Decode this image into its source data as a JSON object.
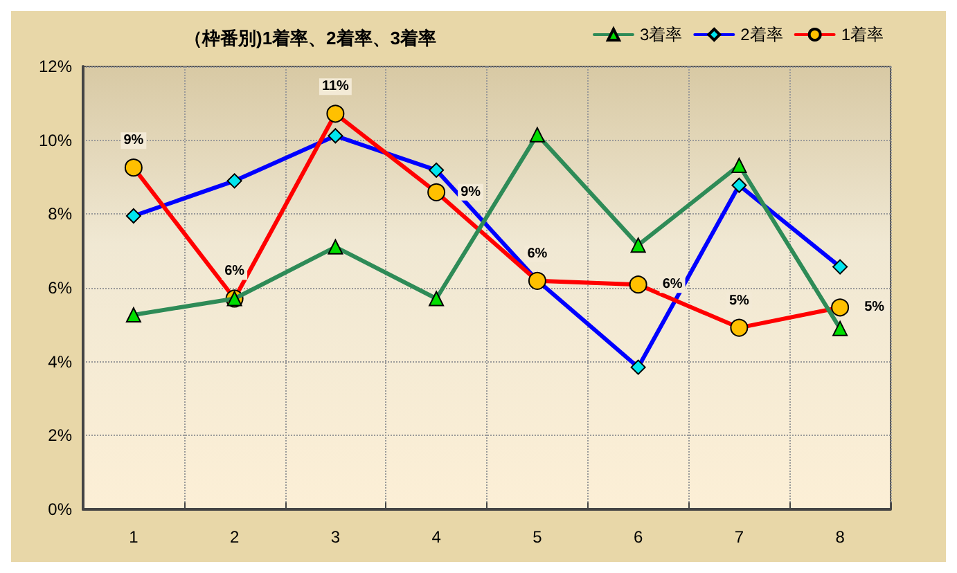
{
  "chart_data": {
    "type": "line",
    "title": "（枠番別)1着率、2着率、3着率",
    "categories": [
      "1",
      "2",
      "3",
      "4",
      "5",
      "6",
      "7",
      "8"
    ],
    "series": [
      {
        "name": "3着率",
        "color": "#2e8b57",
        "marker": "triangle",
        "values": [
          5.27,
          5.71,
          7.11,
          5.71,
          10.15,
          7.16,
          9.32,
          4.9
        ]
      },
      {
        "name": "2着率",
        "color": "#0000ff",
        "marker": "diamond",
        "values": [
          7.95,
          8.9,
          10.12,
          9.19,
          6.2,
          3.85,
          8.78,
          6.57
        ]
      },
      {
        "name": "1着率",
        "color": "#ff0000",
        "marker": "circle",
        "values": [
          9.26,
          5.71,
          10.72,
          8.59,
          6.19,
          6.09,
          4.92,
          5.47
        ],
        "value_labels": [
          "9%",
          "6%",
          "11%",
          "9%",
          "6%",
          "6%",
          "5%",
          "5%"
        ]
      }
    ],
    "ylim": [
      0,
      12
    ],
    "yticks": [
      {
        "value": 0,
        "label": "0%"
      },
      {
        "value": 2,
        "label": "2%"
      },
      {
        "value": 4,
        "label": "4%"
      },
      {
        "value": 6,
        "label": "6%"
      },
      {
        "value": 8,
        "label": "8%"
      },
      {
        "value": 10,
        "label": "10%"
      },
      {
        "value": 12,
        "label": "12%"
      }
    ],
    "grid": true,
    "legend": "top right",
    "line_style": "solid"
  }
}
